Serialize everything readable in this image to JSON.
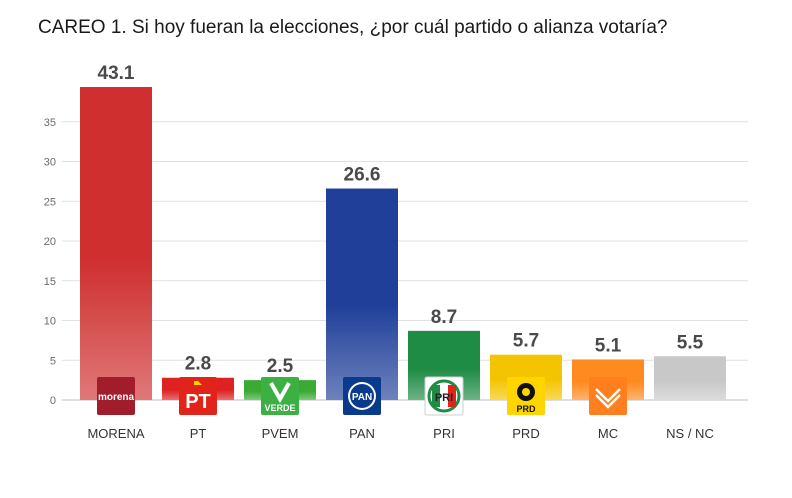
{
  "chart_data": {
    "type": "bar",
    "title": "CAREO 1. Si hoy fueran la elecciones, ¿por cuál partido o alianza votaría?",
    "categories": [
      "MORENA",
      "PT",
      "PVEM",
      "PAN",
      "PRI",
      "PRD",
      "MC",
      "NS / NC"
    ],
    "values": [
      43.1,
      2.8,
      2.5,
      26.6,
      8.7,
      5.7,
      5.1,
      5.5
    ],
    "value_labels": [
      "43.1",
      "2.8",
      "2.5",
      "26.6",
      "8.7",
      "5.7",
      "5.1",
      "5.5"
    ],
    "bar_colors": [
      "#cf2f2f",
      "#de2222",
      "#3aaa35",
      "#1f3f99",
      "#1e8c45",
      "#f5c400",
      "#ff8a1f",
      "#c8c8c8"
    ],
    "logos": [
      {
        "name": "morena-logo",
        "text": "morena",
        "bg": "#a11d2b"
      },
      {
        "name": "pt-logo",
        "text": "PT",
        "bg": "#e2231a"
      },
      {
        "name": "pvem-logo",
        "text": "VERDE",
        "bg": "#3cb043"
      },
      {
        "name": "pan-logo",
        "text": "PAN",
        "bg": "#0a3a8c"
      },
      {
        "name": "pri-logo",
        "text": "PRI",
        "bg": "#ffffff"
      },
      {
        "name": "prd-logo",
        "text": "PRD",
        "bg": "#ffd500"
      },
      {
        "name": "mc-logo",
        "text": "",
        "bg": "#ff7e1d"
      },
      null
    ],
    "yticks": [
      0,
      5,
      10,
      15,
      20,
      25,
      30,
      35
    ],
    "ylim": [
      0,
      35
    ],
    "grid": true,
    "xlabel": "",
    "ylabel": ""
  }
}
